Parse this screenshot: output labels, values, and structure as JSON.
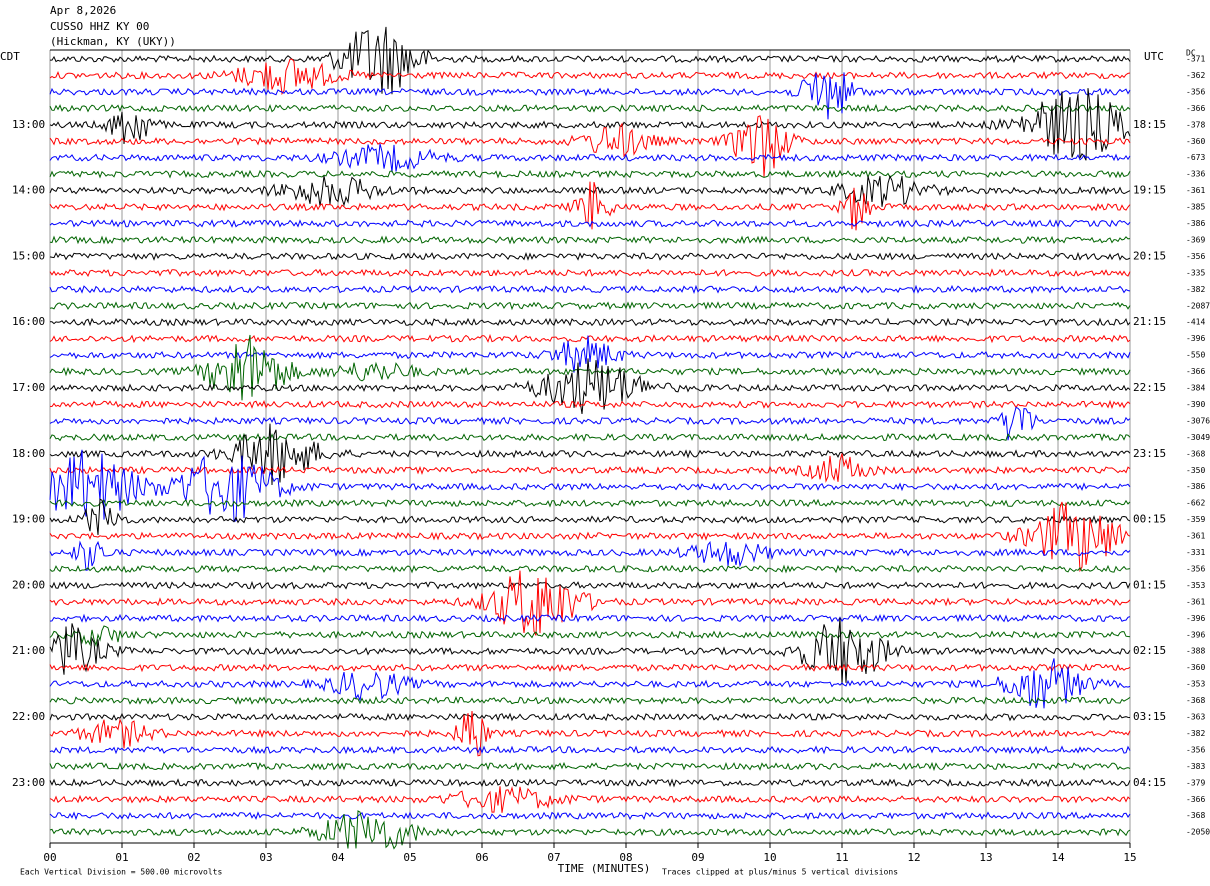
{
  "chart_data": {
    "type": "seismogram",
    "header": [
      "Apr 8,2026",
      "CUSSO HHZ KY 00",
      "(Hickman, KY (UKY))"
    ],
    "left_timezone": "CDT",
    "right_timezone": "UTC",
    "left_labels": [
      "13:00",
      "14:00",
      "15:00",
      "16:00",
      "17:00",
      "18:00",
      "19:00",
      "20:00",
      "21:00",
      "22:00",
      "23:00"
    ],
    "right_labels": [
      "18:15",
      "19:15",
      "20:15",
      "21:15",
      "22:15",
      "23:15",
      "00:15",
      "01:15",
      "02:15",
      "03:15",
      "04:15"
    ],
    "dc_label": "DC",
    "dc_offsets": [
      "-371",
      "-362",
      "-356",
      "-366",
      "-378",
      "-360",
      "-673",
      "-336",
      "-361",
      "-385",
      "-386",
      "-369",
      "-356",
      "-335",
      "-382",
      "-2087",
      "-414",
      "-396",
      "-550",
      "-366",
      "-384",
      "-390",
      "-3076",
      "-3049",
      "-368",
      "-350",
      "-386",
      "-662",
      "-359",
      "-361",
      "-331",
      "-356",
      "-353",
      "-361",
      "-396",
      "-396",
      "-388",
      "-360",
      "-353",
      "-368",
      "-363",
      "-382",
      "-356",
      "-383",
      "-379",
      "-366",
      "-368",
      "-2050"
    ],
    "xlabel": "TIME (MINUTES)",
    "xlim": [
      0,
      15
    ],
    "xticks": [
      {
        "value": 0,
        "label": "00"
      },
      {
        "value": 1,
        "label": "01"
      },
      {
        "value": 2,
        "label": "02"
      },
      {
        "value": 3,
        "label": "03"
      },
      {
        "value": 4,
        "label": "04"
      },
      {
        "value": 5,
        "label": "05"
      },
      {
        "value": 6,
        "label": "06"
      },
      {
        "value": 7,
        "label": "07"
      },
      {
        "value": 8,
        "label": "08"
      },
      {
        "value": 9,
        "label": "09"
      },
      10,
      11,
      12,
      13,
      14,
      15
    ],
    "footer_left": "Each Vertical Division =  500.00 microvolts",
    "footer_right": "Traces clipped at plus/minus 5 vertical divisions",
    "trace_colors": [
      "#000000",
      "#ff0000",
      "#0000ff",
      "#006400"
    ],
    "grid": true
  }
}
